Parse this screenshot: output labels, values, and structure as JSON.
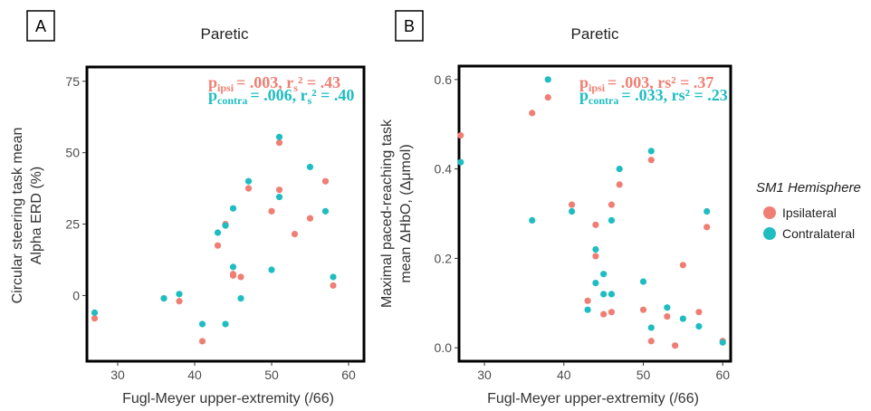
{
  "colors": {
    "ipsi": "#EF7F74",
    "contra": "#1EBDC2"
  },
  "legend": {
    "title": "SM1 Hemisphere",
    "items": [
      "Ipsilateral",
      "Contralateral"
    ]
  },
  "chart_data": [
    {
      "type": "scatter",
      "panel_label": "A",
      "title": "Paretic",
      "xlabel": "Fugl-Meyer upper-extremity (/66)",
      "ylabel": [
        "Circular steering task mean",
        "Alpha ERD (%)"
      ],
      "xlim": [
        26,
        62
      ],
      "ylim": [
        -23,
        80
      ],
      "xticks": [
        "30",
        "40",
        "50",
        "60"
      ],
      "xtick_values": [
        30,
        40,
        50,
        60
      ],
      "yticks": [
        "0",
        "25",
        "50",
        "75"
      ],
      "ytick_values": [
        0,
        25,
        50,
        75
      ],
      "stats": {
        "ipsi": {
          "p_label": "p",
          "p_sub": "ipsi",
          "p_value": "= .003, r",
          "r_sub": "s",
          "r_value": "² = .43"
        },
        "contra": {
          "p_label": "p",
          "p_sub": "contra",
          "p_value": "= .006, r",
          "r_sub": "s",
          "r_value": "² = .40"
        }
      },
      "series": [
        {
          "name": "Ipsilateral",
          "x": [
            27,
            36,
            38,
            41,
            43,
            44,
            45,
            45,
            46,
            47,
            50,
            51,
            51,
            53,
            55,
            57,
            58
          ],
          "y": [
            -8,
            -1,
            -2,
            -16,
            17.5,
            25,
            7,
            7.5,
            6.5,
            37.5,
            29.5,
            53.5,
            37,
            21.5,
            27,
            40,
            3.5
          ]
        },
        {
          "name": "Contralateral",
          "x": [
            27,
            36,
            38,
            41,
            43,
            44,
            44,
            45,
            45,
            46,
            47,
            50,
            51,
            51,
            55,
            57,
            58
          ],
          "y": [
            -6,
            -1,
            0.5,
            -10,
            22,
            24.5,
            -10,
            30.5,
            10,
            -1,
            40,
            9,
            55.5,
            34.5,
            45,
            29.5,
            6.5
          ]
        }
      ]
    },
    {
      "type": "scatter",
      "panel_label": "B",
      "title": "Paretic",
      "xlabel": "Fugl-Meyer upper-extremity (/66)",
      "ylabel": [
        "Maximal paced-reaching task",
        "mean ΔHbO, (Δμmol)"
      ],
      "xlim": [
        26.8,
        61
      ],
      "ylim": [
        -0.03,
        0.63
      ],
      "xticks": [
        "30",
        "40",
        "50",
        "60"
      ],
      "xtick_values": [
        30,
        40,
        50,
        60
      ],
      "yticks": [
        "0.0",
        "0.2",
        "0.4",
        "0.6"
      ],
      "ytick_values": [
        0.0,
        0.2,
        0.4,
        0.6
      ],
      "stats": {
        "ipsi": {
          "p_label": "p",
          "p_sub": "ipsi",
          "p_value": "= .003, rs² = .37"
        },
        "contra": {
          "p_label": "p",
          "p_sub": "contra",
          "p_value": "= .033, rs² = .23"
        }
      },
      "series": [
        {
          "name": "Ipsilateral",
          "x": [
            27,
            36,
            38,
            41,
            43,
            44,
            44,
            45,
            46,
            46,
            47,
            50,
            51,
            51,
            53,
            54,
            55,
            57,
            58,
            60
          ],
          "y": [
            0.475,
            0.525,
            0.56,
            0.32,
            0.105,
            0.275,
            0.205,
            0.075,
            0.32,
            0.08,
            0.365,
            0.085,
            0.42,
            0.015,
            0.07,
            0.005,
            0.185,
            0.08,
            0.27,
            0.015
          ]
        },
        {
          "name": "Contralateral",
          "x": [
            27,
            36,
            38,
            41,
            43,
            44,
            44,
            45,
            45,
            46,
            46,
            47,
            50,
            51,
            51,
            53,
            55,
            57,
            58,
            60
          ],
          "y": [
            0.415,
            0.285,
            0.6,
            0.305,
            0.085,
            0.22,
            0.145,
            0.12,
            0.165,
            0.285,
            0.12,
            0.4,
            0.148,
            0.44,
            0.045,
            0.09,
            0.065,
            0.048,
            0.305,
            0.012
          ]
        }
      ]
    }
  ]
}
